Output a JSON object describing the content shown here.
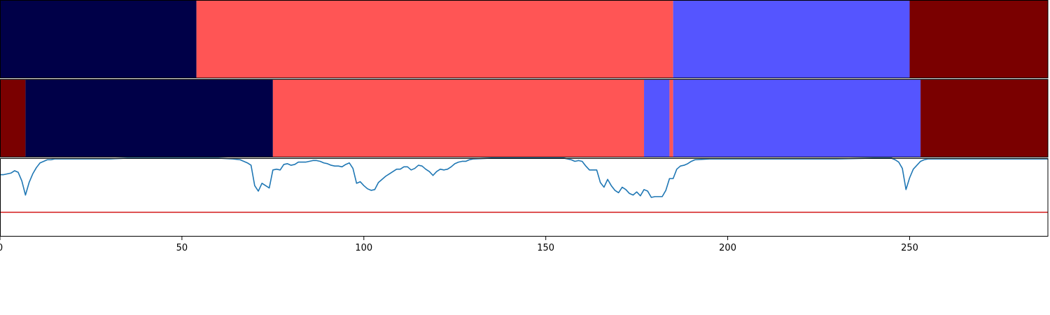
{
  "colors": {
    "seg_navy": "#000048",
    "seg_salmon": "#ff5555",
    "seg_blue": "#5555ff",
    "seg_maroon": "#7a0000",
    "line": "#1f77b4",
    "threshold": "#d62728",
    "axis": "#000000"
  },
  "chart_data": [
    {
      "type": "segments",
      "name": "",
      "segments": [
        {
          "start": 0,
          "end": 54,
          "color": "seg_navy"
        },
        {
          "start": 54,
          "end": 185,
          "color": "seg_salmon"
        },
        {
          "start": 185,
          "end": 250,
          "color": "seg_blue"
        },
        {
          "start": 250,
          "end": 288,
          "color": "seg_maroon"
        }
      ]
    },
    {
      "type": "segments",
      "name": "",
      "segments": [
        {
          "start": 0,
          "end": 7,
          "color": "seg_maroon"
        },
        {
          "start": 7,
          "end": 75,
          "color": "seg_navy"
        },
        {
          "start": 75,
          "end": 177,
          "color": "seg_salmon"
        },
        {
          "start": 177,
          "end": 184,
          "color": "seg_blue"
        },
        {
          "start": 184,
          "end": 185,
          "color": "seg_salmon"
        },
        {
          "start": 185,
          "end": 253,
          "color": "seg_blue"
        },
        {
          "start": 253,
          "end": 288,
          "color": "seg_maroon"
        }
      ]
    },
    {
      "type": "line",
      "xlim": [
        0,
        288
      ],
      "ylim": [
        0,
        1
      ],
      "threshold": 0.31,
      "x_ticks": [
        0,
        50,
        100,
        150,
        200,
        250
      ],
      "x_tick_labels": [
        "0",
        "50",
        "100",
        "150",
        "200",
        "250"
      ],
      "points": [
        [
          0,
          0.79
        ],
        [
          1,
          0.79
        ],
        [
          2,
          0.8
        ],
        [
          3,
          0.81
        ],
        [
          4,
          0.84
        ],
        [
          5,
          0.82
        ],
        [
          6,
          0.71
        ],
        [
          7,
          0.53
        ],
        [
          8,
          0.69
        ],
        [
          9,
          0.8
        ],
        [
          10,
          0.88
        ],
        [
          11,
          0.94
        ],
        [
          12,
          0.96
        ],
        [
          13,
          0.98
        ],
        [
          14,
          0.98
        ],
        [
          15,
          0.99
        ],
        [
          16,
          0.99
        ],
        [
          17,
          0.99
        ],
        [
          18,
          0.99
        ],
        [
          19,
          0.99
        ],
        [
          20,
          0.99
        ],
        [
          22,
          0.99
        ],
        [
          25,
          0.99
        ],
        [
          30,
          0.99
        ],
        [
          35,
          1.0
        ],
        [
          40,
          1.0
        ],
        [
          50,
          1.0
        ],
        [
          60,
          1.0
        ],
        [
          64,
          0.99
        ],
        [
          66,
          0.98
        ],
        [
          68,
          0.94
        ],
        [
          69,
          0.91
        ],
        [
          70,
          0.65
        ],
        [
          71,
          0.58
        ],
        [
          72,
          0.68
        ],
        [
          73,
          0.65
        ],
        [
          74,
          0.62
        ],
        [
          75,
          0.85
        ],
        [
          76,
          0.86
        ],
        [
          77,
          0.85
        ],
        [
          78,
          0.92
        ],
        [
          79,
          0.93
        ],
        [
          80,
          0.91
        ],
        [
          81,
          0.92
        ],
        [
          82,
          0.95
        ],
        [
          83,
          0.95
        ],
        [
          84,
          0.95
        ],
        [
          85,
          0.96
        ],
        [
          86,
          0.97
        ],
        [
          87,
          0.97
        ],
        [
          88,
          0.96
        ],
        [
          89,
          0.94
        ],
        [
          90,
          0.93
        ],
        [
          91,
          0.91
        ],
        [
          92,
          0.9
        ],
        [
          93,
          0.9
        ],
        [
          94,
          0.89
        ],
        [
          95,
          0.92
        ],
        [
          96,
          0.94
        ],
        [
          97,
          0.87
        ],
        [
          98,
          0.68
        ],
        [
          99,
          0.7
        ],
        [
          100,
          0.65
        ],
        [
          101,
          0.61
        ],
        [
          102,
          0.59
        ],
        [
          103,
          0.6
        ],
        [
          104,
          0.69
        ],
        [
          105,
          0.73
        ],
        [
          106,
          0.77
        ],
        [
          107,
          0.8
        ],
        [
          108,
          0.83
        ],
        [
          109,
          0.86
        ],
        [
          110,
          0.86
        ],
        [
          111,
          0.89
        ],
        [
          112,
          0.89
        ],
        [
          113,
          0.85
        ],
        [
          114,
          0.87
        ],
        [
          115,
          0.91
        ],
        [
          116,
          0.9
        ],
        [
          117,
          0.86
        ],
        [
          118,
          0.83
        ],
        [
          119,
          0.78
        ],
        [
          120,
          0.83
        ],
        [
          121,
          0.86
        ],
        [
          122,
          0.85
        ],
        [
          123,
          0.86
        ],
        [
          124,
          0.89
        ],
        [
          125,
          0.93
        ],
        [
          126,
          0.95
        ],
        [
          127,
          0.96
        ],
        [
          128,
          0.96
        ],
        [
          129,
          0.98
        ],
        [
          130,
          0.99
        ],
        [
          135,
          1.0
        ],
        [
          145,
          1.0
        ],
        [
          155,
          1.0
        ],
        [
          157,
          0.98
        ],
        [
          158,
          0.96
        ],
        [
          159,
          0.97
        ],
        [
          160,
          0.96
        ],
        [
          161,
          0.9
        ],
        [
          162,
          0.85
        ],
        [
          163,
          0.85
        ],
        [
          164,
          0.85
        ],
        [
          165,
          0.69
        ],
        [
          166,
          0.63
        ],
        [
          167,
          0.73
        ],
        [
          168,
          0.65
        ],
        [
          169,
          0.59
        ],
        [
          170,
          0.56
        ],
        [
          171,
          0.63
        ],
        [
          172,
          0.6
        ],
        [
          173,
          0.55
        ],
        [
          174,
          0.53
        ],
        [
          175,
          0.57
        ],
        [
          176,
          0.52
        ],
        [
          177,
          0.6
        ],
        [
          178,
          0.58
        ],
        [
          179,
          0.5
        ],
        [
          180,
          0.51
        ],
        [
          181,
          0.51
        ],
        [
          182,
          0.51
        ],
        [
          183,
          0.59
        ],
        [
          184,
          0.74
        ],
        [
          185,
          0.74
        ],
        [
          186,
          0.86
        ],
        [
          187,
          0.9
        ],
        [
          188,
          0.91
        ],
        [
          189,
          0.93
        ],
        [
          190,
          0.96
        ],
        [
          191,
          0.98
        ],
        [
          195,
          0.99
        ],
        [
          200,
          0.99
        ],
        [
          210,
          0.99
        ],
        [
          220,
          0.99
        ],
        [
          230,
          0.99
        ],
        [
          240,
          1.0
        ],
        [
          245,
          1.0
        ],
        [
          246,
          0.98
        ],
        [
          247,
          0.95
        ],
        [
          248,
          0.87
        ],
        [
          249,
          0.6
        ],
        [
          250,
          0.75
        ],
        [
          251,
          0.86
        ],
        [
          252,
          0.91
        ],
        [
          253,
          0.96
        ],
        [
          254,
          0.98
        ],
        [
          255,
          0.99
        ],
        [
          260,
          0.99
        ],
        [
          270,
          0.99
        ],
        [
          280,
          0.99
        ],
        [
          288,
          0.99
        ]
      ]
    }
  ]
}
